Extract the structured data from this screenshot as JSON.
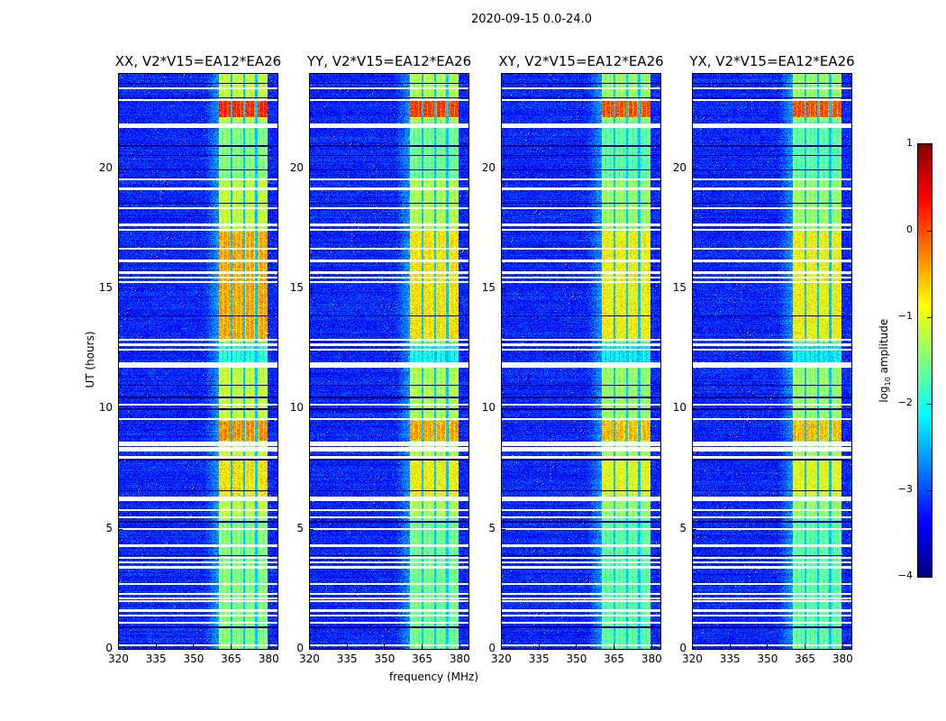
{
  "chart_data": {
    "type": "heatmap",
    "suptitle": "2020-09-15 0.0-24.0",
    "xlabel": "frequency (MHz)",
    "ylabel": "UT (hours)",
    "xlim": [
      320,
      384
    ],
    "ylim": [
      0,
      24
    ],
    "xticks": [
      320,
      335,
      350,
      365,
      380
    ],
    "yticks": [
      0,
      5,
      10,
      15,
      20
    ],
    "panels": [
      {
        "title": "XX, V2*V15=EA12*EA26",
        "band_level": -1.1
      },
      {
        "title": "YY, V2*V15=EA12*EA26",
        "band_level": -1.2
      },
      {
        "title": "XY, V2*V15=EA12*EA26",
        "band_level": -1.3
      },
      {
        "title": "YX, V2*V15=EA12*EA26",
        "band_level": -1.3
      }
    ],
    "rfi_band_mhz": [
      360.5,
      380
    ],
    "background_level": -3.2,
    "flagged_hours": [
      0.15,
      1.1,
      1.4,
      1.6,
      2.0,
      2.1,
      2.3,
      2.7,
      3.4,
      3.6,
      3.8,
      4.3,
      5.0,
      5.5,
      5.8,
      6.2,
      6.3,
      8.0,
      8.3,
      8.4,
      8.5,
      8.6,
      9.6,
      10.2,
      11.8,
      11.9,
      12.5,
      12.7,
      12.9,
      15.3,
      15.5,
      15.7,
      16.2,
      16.7,
      17.5,
      17.7,
      18.4,
      19.2,
      19.6,
      21.8,
      21.9,
      22.9,
      23.4
    ],
    "dark_hours": [
      0.9,
      3.9,
      5.3,
      6.6,
      7.9,
      10.0,
      10.5,
      11.0,
      13.9,
      18.6,
      20.0,
      20.6,
      21.0,
      23.0,
      23.6
    ],
    "colorbar": {
      "label_main": "log",
      "label_sub": "10",
      "label_rest": " amplitude",
      "range": [
        -4,
        1
      ],
      "ticks": [
        "−4",
        "−3",
        "−2",
        "−1",
        "0",
        "1"
      ],
      "colormap": "jet"
    }
  }
}
